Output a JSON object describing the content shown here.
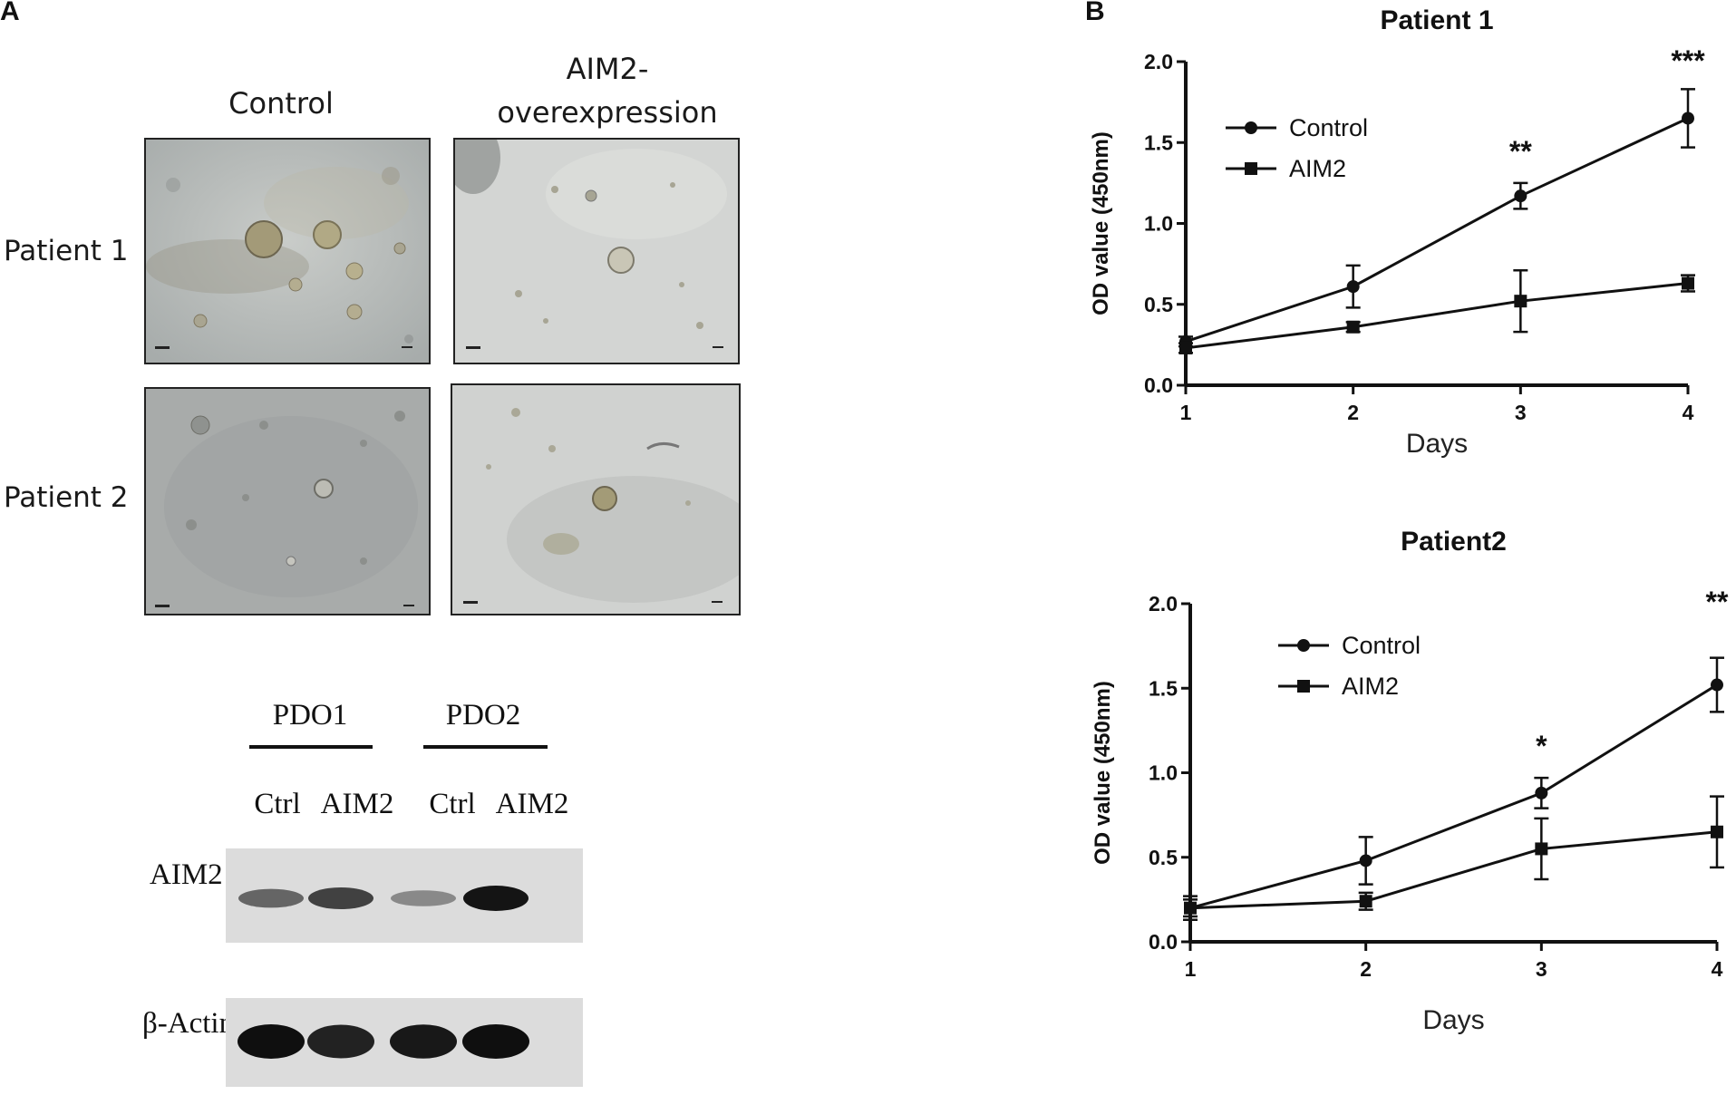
{
  "panel_a": {
    "letter": "A",
    "column_labels": [
      "Control",
      "AIM2-\noverexpression"
    ],
    "col_label_control": "Control",
    "col_label_aim2_line1": "AIM2-",
    "col_label_aim2_line2": "overexpression",
    "row_labels": [
      "Patient 1",
      "Patient 2"
    ],
    "western_blot": {
      "group_labels": [
        "PDO1",
        "PDO2"
      ],
      "lane_labels": [
        "Ctrl",
        "AIM2",
        "Ctrl",
        "AIM2"
      ],
      "band_labels": [
        "AIM2",
        "β-Actin"
      ],
      "aim2_band_intensity": [
        0.55,
        0.75,
        0.35,
        1.0
      ],
      "actin_band_intensity": [
        1.0,
        0.9,
        0.95,
        1.0
      ]
    }
  },
  "panel_b": {
    "letter": "B"
  },
  "chart_data": [
    {
      "type": "line",
      "title": "Patient 1",
      "xlabel": "Days",
      "ylabel": "OD value (450nm)",
      "x": [
        1,
        2,
        3,
        4
      ],
      "xlim": [
        1,
        4
      ],
      "ylim": [
        0,
        2.0
      ],
      "xticks": [
        "1",
        "2",
        "3",
        "4"
      ],
      "yticks": [
        "0.0",
        "0.5",
        "1.0",
        "1.5",
        "2.0"
      ],
      "legend_position": "top-left",
      "series": [
        {
          "name": "Control",
          "marker": "circle",
          "values": [
            0.27,
            0.61,
            1.17,
            1.65
          ],
          "errors": [
            0.03,
            0.13,
            0.08,
            0.18
          ]
        },
        {
          "name": "AIM2",
          "marker": "square",
          "values": [
            0.23,
            0.36,
            0.52,
            0.63
          ],
          "errors": [
            0.03,
            0.03,
            0.19,
            0.05
          ]
        }
      ],
      "annotations": [
        {
          "x": 3,
          "text": "**"
        },
        {
          "x": 4,
          "text": "***"
        }
      ]
    },
    {
      "type": "line",
      "title": "Patient2",
      "xlabel": "Days",
      "ylabel": "OD value (450nm)",
      "x": [
        1,
        2,
        3,
        4
      ],
      "xlim": [
        1,
        4
      ],
      "ylim": [
        0,
        2.0
      ],
      "xticks": [
        "1",
        "2",
        "3",
        "4"
      ],
      "yticks": [
        "0.0",
        "0.5",
        "1.0",
        "1.5",
        "2.0"
      ],
      "legend_position": "top-left",
      "series": [
        {
          "name": "Control",
          "marker": "circle",
          "values": [
            0.2,
            0.48,
            0.88,
            1.52
          ],
          "errors": [
            0.07,
            0.14,
            0.09,
            0.16
          ]
        },
        {
          "name": "AIM2",
          "marker": "square",
          "values": [
            0.2,
            0.24,
            0.55,
            0.65
          ],
          "errors": [
            0.05,
            0.05,
            0.18,
            0.21
          ]
        }
      ],
      "annotations": [
        {
          "x": 3,
          "text": "*"
        },
        {
          "x": 4,
          "text": "**"
        }
      ]
    }
  ]
}
